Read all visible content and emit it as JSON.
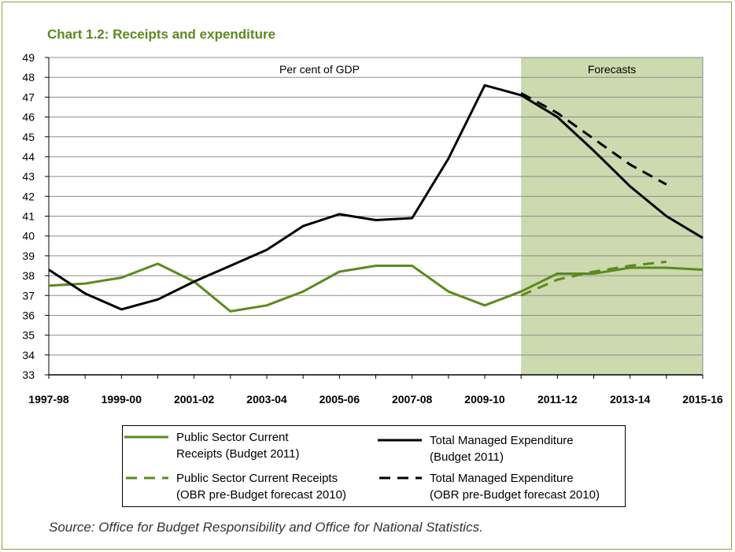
{
  "title": "Chart 1.2: Receipts and expenditure",
  "source": "Source: Office for Budget Responsibility and Office for National Statistics.",
  "colors": {
    "receipts": "#5b8a1e",
    "expenditure": "#000000",
    "forecast_shading": "#cdd9ae",
    "frame": "#8aa63c"
  },
  "legend_items": [
    {
      "line1": "Public Sector Current",
      "line2": "Receipts (Budget 2011)",
      "style": "solid",
      "color": "#5b8a1e"
    },
    {
      "line1": "Total Managed Expenditure",
      "line2": "(Budget 2011)",
      "style": "solid",
      "color": "#000000"
    },
    {
      "line1": "Public Sector Current Receipts",
      "line2": "(OBR pre-Budget forecast 2010)",
      "style": "dashed",
      "color": "#5b8a1e"
    },
    {
      "line1": "Total Managed Expenditure",
      "line2": "(OBR pre-Budget forecast 2010)",
      "style": "dashed",
      "color": "#000000"
    }
  ],
  "chart_data": {
    "type": "line",
    "title": "Chart 1.2: Receipts and expenditure",
    "annotations": [
      "Per cent of GDP",
      "Forecasts"
    ],
    "xlabel": "",
    "ylabel": "",
    "ylim": [
      33,
      49
    ],
    "y_ticks": [
      33,
      34,
      35,
      36,
      37,
      38,
      39,
      40,
      41,
      42,
      43,
      44,
      45,
      46,
      47,
      48,
      49
    ],
    "x": [
      "1997-98",
      "1998-99",
      "1999-00",
      "2000-01",
      "2001-02",
      "2002-03",
      "2003-04",
      "2004-05",
      "2005-06",
      "2006-07",
      "2007-08",
      "2008-09",
      "2009-10",
      "2010-11",
      "2011-12",
      "2012-13",
      "2013-14",
      "2014-15",
      "2015-16"
    ],
    "x_tick_labels": [
      "1997-98",
      "1999-00",
      "2001-02",
      "2003-04",
      "2005-06",
      "2007-08",
      "2009-10",
      "2011-12",
      "2013-14",
      "2015-16"
    ],
    "forecast_region": {
      "from": "2010-11",
      "to": "2015-16"
    },
    "grid": true,
    "series": [
      {
        "name": "Public Sector Current Receipts (Budget 2011)",
        "style": "solid",
        "color": "#5b8a1e",
        "values": [
          37.5,
          37.6,
          37.9,
          38.6,
          37.7,
          36.2,
          36.5,
          37.2,
          38.2,
          38.5,
          38.5,
          37.2,
          36.5,
          37.2,
          38.1,
          38.1,
          38.4,
          38.4,
          38.3
        ]
      },
      {
        "name": "Total Managed Expenditure (Budget 2011)",
        "style": "solid",
        "color": "#000000",
        "values": [
          38.3,
          37.1,
          36.3,
          36.8,
          37.7,
          38.5,
          39.3,
          40.5,
          41.1,
          40.8,
          40.9,
          43.9,
          47.6,
          47.1,
          46.0,
          44.3,
          42.5,
          41.0,
          39.9
        ]
      },
      {
        "name": "Public Sector Current Receipts (OBR pre-Budget forecast 2010)",
        "style": "dashed",
        "color": "#5b8a1e",
        "x": [
          "2010-11",
          "2011-12",
          "2012-13",
          "2013-14",
          "2014-15"
        ],
        "values": [
          37.0,
          37.8,
          38.2,
          38.5,
          38.7
        ]
      },
      {
        "name": "Total Managed Expenditure (OBR pre-Budget forecast 2010)",
        "style": "dashed",
        "color": "#000000",
        "x": [
          "2010-11",
          "2011-12",
          "2012-13",
          "2013-14",
          "2014-15"
        ],
        "values": [
          47.2,
          46.2,
          44.9,
          43.6,
          42.6
        ]
      }
    ]
  }
}
